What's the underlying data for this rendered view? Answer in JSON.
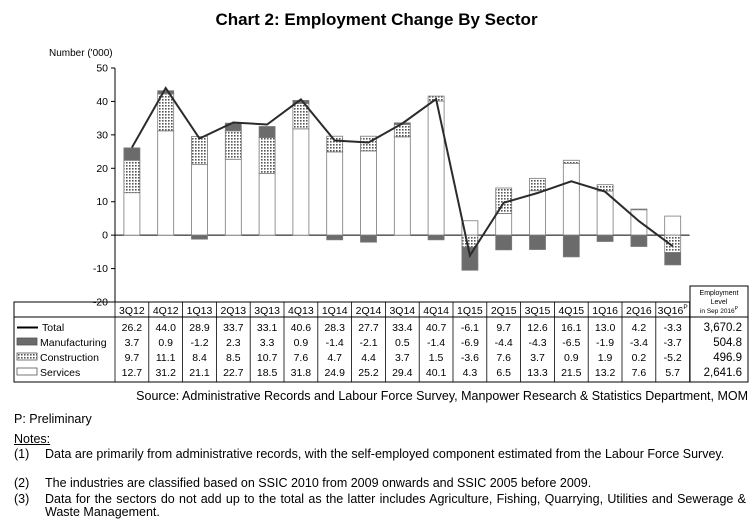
{
  "chart_data": {
    "type": "bar",
    "stacked": true,
    "title": "Chart 2: Employment Change By Sector",
    "ylabel": "Number ('000)",
    "ylim": [
      -20,
      50
    ],
    "yticks": [
      -20,
      -10,
      0,
      10,
      20,
      30,
      40,
      50
    ],
    "categories": [
      "3Q12",
      "4Q12",
      "1Q13",
      "2Q13",
      "3Q13",
      "4Q13",
      "1Q14",
      "2Q14",
      "3Q14",
      "4Q14",
      "1Q15",
      "2Q15",
      "3Q15",
      "4Q15",
      "1Q16",
      "2Q16",
      "3Q16"
    ],
    "category_display": [
      "3Q12",
      "4Q12",
      "1Q13",
      "2Q13",
      "3Q13",
      "4Q13",
      "1Q14",
      "2Q14",
      "3Q14",
      "4Q14",
      "1Q15",
      "2Q15",
      "3Q15",
      "4Q15",
      "1Q16",
      "2Q16",
      "3Q16P"
    ],
    "series": [
      {
        "name": "Total",
        "kind": "line",
        "color": "#222222",
        "values": [
          26.2,
          44.0,
          28.9,
          33.7,
          33.1,
          40.6,
          28.3,
          27.7,
          33.4,
          40.7,
          -6.1,
          9.7,
          12.6,
          16.1,
          13.0,
          4.2,
          -3.3
        ],
        "display": [
          "26.2",
          "44.0",
          "28.9",
          "33.7",
          "33.1",
          "40.6",
          "28.3",
          "27.7",
          "33.4",
          "40.7",
          "-6.1",
          "9.7",
          "12.6",
          "16.1",
          "13.0",
          "4.2",
          "-3.3"
        ]
      },
      {
        "name": "Manufacturing",
        "kind": "bar",
        "fill": "#6b6b6b",
        "values": [
          3.7,
          0.9,
          -1.2,
          2.3,
          3.3,
          0.9,
          -1.4,
          -2.1,
          0.5,
          -1.4,
          -6.9,
          -4.4,
          -4.3,
          -6.5,
          -1.9,
          -3.4,
          -3.7
        ],
        "display": [
          "3.7",
          "0.9",
          "-1.2",
          "2.3",
          "3.3",
          "0.9",
          "-1.4",
          "-2.1",
          "0.5",
          "-1.4",
          "-6.9",
          "-4.4",
          "-4.3",
          "-6.5",
          "-1.9",
          "-3.4",
          "-3.7"
        ]
      },
      {
        "name": "Construction",
        "kind": "bar",
        "fill": "#a8a8a8",
        "values": [
          9.7,
          11.1,
          8.4,
          8.5,
          10.7,
          7.6,
          4.7,
          4.4,
          3.7,
          1.5,
          -3.6,
          7.6,
          3.7,
          0.9,
          1.9,
          0.2,
          -5.2
        ],
        "display": [
          "9.7",
          "11.1",
          "8.4",
          "8.5",
          "10.7",
          "7.6",
          "4.7",
          "4.4",
          "3.7",
          "1.5",
          "-3.6",
          "7.6",
          "3.7",
          "0.9",
          "1.9",
          "0.2",
          "-5.2"
        ]
      },
      {
        "name": "Services",
        "kind": "bar",
        "fill": "#ffffff",
        "values": [
          12.7,
          31.2,
          21.1,
          22.7,
          18.5,
          31.8,
          24.9,
          25.2,
          29.4,
          40.1,
          4.3,
          6.5,
          13.3,
          21.5,
          13.2,
          7.6,
          5.7
        ],
        "display": [
          "12.7",
          "31.2",
          "21.1",
          "22.7",
          "18.5",
          "31.8",
          "24.9",
          "25.2",
          "29.4",
          "40.1",
          "4.3",
          "6.5",
          "13.3",
          "21.5",
          "13.2",
          "7.6",
          "5.7"
        ]
      }
    ],
    "level_header": [
      "Employment",
      "Level",
      "in Sep 2016P"
    ],
    "levels": [
      "3,670.2",
      "504.8",
      "496.9",
      "2,641.6"
    ],
    "grid": false,
    "legend": "data-table"
  },
  "source": "Source: Administrative Records and Labour Force Survey, Manpower Research & Statistics Department, MOM",
  "preliminary_note": "P: Preliminary",
  "notes_heading": "Notes:",
  "notes": [
    {
      "num": "(1)",
      "text": "Data are primarily from administrative records, with the self-employed component estimated from the Labour Force Survey."
    },
    {
      "num": "(2)",
      "text": "The industries are classified based on SSIC 2010 from 2009 onwards and SSIC 2005 before 2009."
    },
    {
      "num": "(3)",
      "text": "Data for the sectors do not add up to the total as the latter includes Agriculture, Fishing, Quarrying, Utilities and Sewerage & Waste Management."
    }
  ]
}
